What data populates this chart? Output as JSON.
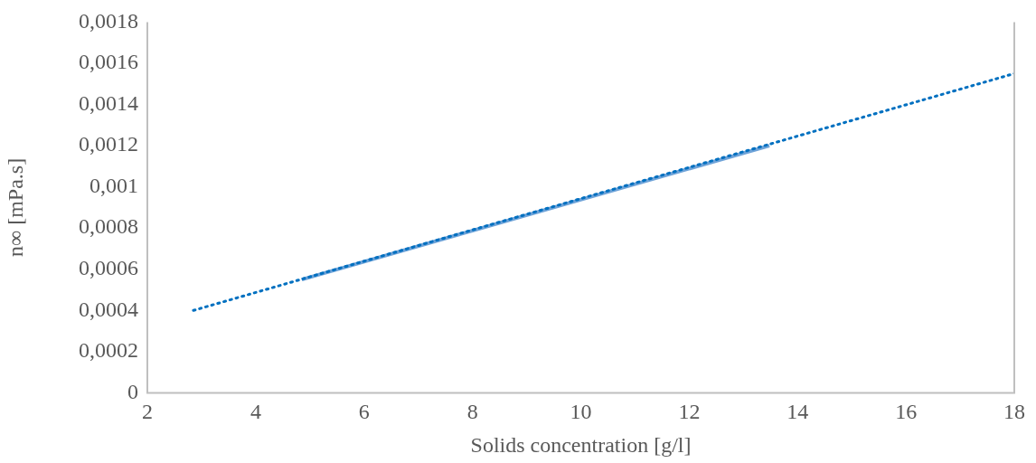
{
  "chart_data": {
    "type": "line",
    "xlabel": "Solids concentration [g/l]",
    "ylabel": "n∞ [mPa.s]",
    "xlim": [
      2,
      18
    ],
    "xticks": [
      2,
      4,
      6,
      8,
      10,
      12,
      14,
      16,
      18
    ],
    "ylim": [
      0,
      0.0018
    ],
    "yticks": [
      {
        "value": 0,
        "label": "0"
      },
      {
        "value": 0.0002,
        "label": "0,0002"
      },
      {
        "value": 0.0004,
        "label": "0,0004"
      },
      {
        "value": 0.0006,
        "label": "0,0006"
      },
      {
        "value": 0.0008,
        "label": "0,0008"
      },
      {
        "value": 0.001,
        "label": "0,001"
      },
      {
        "value": 0.0012,
        "label": "0,0012"
      },
      {
        "value": 0.0014,
        "label": "0,0014"
      },
      {
        "value": 0.0016,
        "label": "0,0016"
      },
      {
        "value": 0.0018,
        "label": "0,0018"
      }
    ],
    "grid": false,
    "legend": false,
    "marker": "none",
    "series": [
      {
        "color": "#6fa3d8",
        "x": [
          4.85,
          13.48
        ],
        "values": [
          0.00055,
          0.0012
        ],
        "line_style": "solid"
      },
      {
        "color": "#0070c0",
        "x": [
          2.85,
          18
        ],
        "values": [
          0.0004,
          0.00155
        ],
        "line_style": "dotted"
      }
    ]
  }
}
